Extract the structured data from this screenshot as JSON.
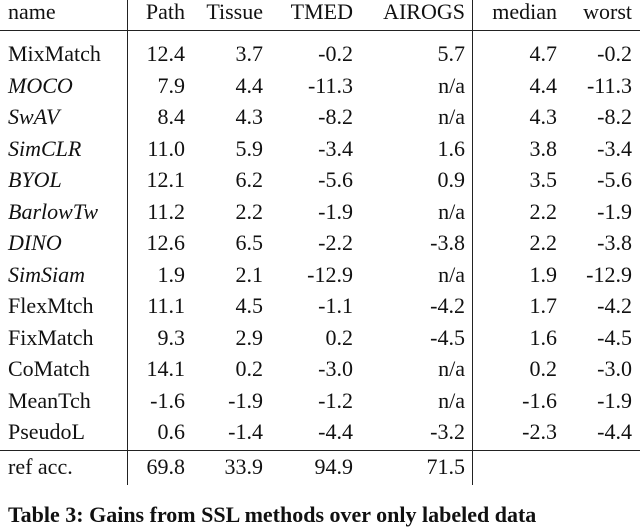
{
  "table": {
    "header": [
      "name",
      "Path",
      "Tissue",
      "TMED",
      "AIROGS",
      "median",
      "worst"
    ],
    "rows": [
      [
        "MixMatch",
        "12.4",
        "3.7",
        "-0.2",
        "5.7",
        "4.7",
        "-0.2"
      ],
      [
        "MOCO",
        "7.9",
        "4.4",
        "-11.3",
        "n/a",
        "4.4",
        "-11.3"
      ],
      [
        "SwAV",
        "8.4",
        "4.3",
        "-8.2",
        "n/a",
        "4.3",
        "-8.2"
      ],
      [
        "SimCLR",
        "11.0",
        "5.9",
        "-3.4",
        "1.6",
        "3.8",
        "-3.4"
      ],
      [
        "BYOL",
        "12.1",
        "6.2",
        "-5.6",
        "0.9",
        "3.5",
        "-5.6"
      ],
      [
        "BarlowTw",
        "11.2",
        "2.2",
        "-1.9",
        "n/a",
        "2.2",
        "-1.9"
      ],
      [
        "DINO",
        "12.6",
        "6.5",
        "-2.2",
        "-3.8",
        "2.2",
        "-3.8"
      ],
      [
        "SimSiam",
        "1.9",
        "2.1",
        "-12.9",
        "n/a",
        "1.9",
        "-12.9"
      ],
      [
        "FlexMtch",
        "11.1",
        "4.5",
        "-1.1",
        "-4.2",
        "1.7",
        "-4.2"
      ],
      [
        "FixMatch",
        "9.3",
        "2.9",
        "0.2",
        "-4.5",
        "1.6",
        "-4.5"
      ],
      [
        "CoMatch",
        "14.1",
        "0.2",
        "-3.0",
        "n/a",
        "0.2",
        "-3.0"
      ],
      [
        "MeanTch",
        "-1.6",
        "-1.9",
        "-1.2",
        "n/a",
        "-1.6",
        "-1.9"
      ],
      [
        "PseudoL",
        "0.6",
        "-1.4",
        "-4.4",
        "-3.2",
        "-2.3",
        "-4.4"
      ]
    ],
    "footer": [
      "ref acc.",
      "69.8",
      "33.9",
      "94.9",
      "71.5"
    ]
  },
  "caption": "Table 3: Gains from SSL methods over only labeled data"
}
